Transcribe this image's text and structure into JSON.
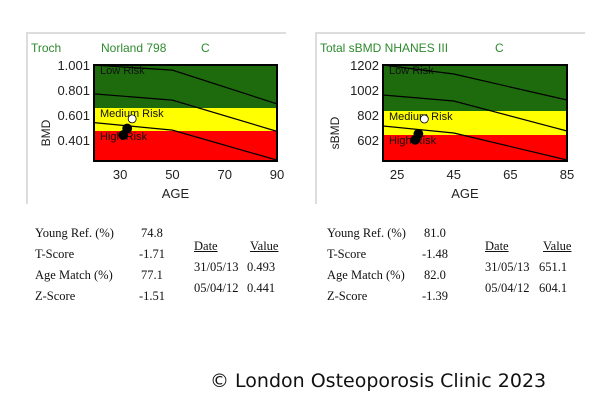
{
  "chart_data": [
    {
      "type": "line",
      "title_parts": [
        "Troch",
        "Norland 798",
        "C"
      ],
      "xlabel": "AGE",
      "ylabel": "BMD",
      "xlim": [
        20,
        90
      ],
      "ylim": [
        0.233,
        1.001
      ],
      "xticks": [
        "30",
        "50",
        "70",
        "90"
      ],
      "xtick_values": [
        30,
        50,
        70,
        90
      ],
      "yticks": [
        "1.001",
        "0.801",
        "0.601",
        "0.401"
      ],
      "ytick_values": [
        1.001,
        0.801,
        0.601,
        0.401
      ],
      "bands": [
        {
          "label": "Low Risk",
          "from": 0.657,
          "to": 1.001,
          "color": "#1e6b0e"
        },
        {
          "label": "Medium Risk",
          "from": 0.473,
          "to": 0.657,
          "color": "#ffff00"
        },
        {
          "label": "High Risk",
          "from": 0.233,
          "to": 0.473,
          "color": "#ff0000"
        }
      ],
      "curves": [
        {
          "x": [
            20,
            50,
            90
          ],
          "y": [
            1.0,
            0.96,
            0.69
          ]
        },
        {
          "x": [
            20,
            50,
            90
          ],
          "y": [
            0.77,
            0.72,
            0.47
          ]
        },
        {
          "x": [
            20,
            50,
            90
          ],
          "y": [
            0.54,
            0.48,
            0.24
          ]
        }
      ],
      "points": [
        {
          "x": 34.6,
          "y": 0.57,
          "style": "white"
        },
        {
          "x": 32.7,
          "y": 0.493,
          "style": "black"
        },
        {
          "x": 31.2,
          "y": 0.441,
          "style": "black"
        }
      ],
      "grid": false
    },
    {
      "type": "line",
      "title_parts": [
        "Total sBMD NHANES III",
        "C"
      ],
      "xlabel": "AGE",
      "ylabel": "sBMD",
      "xlim": [
        20,
        85
      ],
      "ylim": [
        434,
        1202
      ],
      "xticks": [
        "25",
        "45",
        "65",
        "85"
      ],
      "xtick_values": [
        25,
        45,
        65,
        85
      ],
      "yticks": [
        "1202",
        "1002",
        "802",
        "602"
      ],
      "ytick_values": [
        1202,
        1002,
        802,
        602
      ],
      "bands": [
        {
          "label": "Low Risk",
          "from": 834,
          "to": 1202,
          "color": "#1e6b0e"
        },
        {
          "label": "Medium Risk",
          "from": 642,
          "to": 834,
          "color": "#ffff00"
        },
        {
          "label": "High Risk",
          "from": 434,
          "to": 642,
          "color": "#ff0000"
        }
      ],
      "curves": [
        {
          "x": [
            20,
            45,
            85
          ],
          "y": [
            1202,
            1130,
            922
          ]
        },
        {
          "x": [
            20,
            45,
            85
          ],
          "y": [
            962,
            914,
            674
          ]
        },
        {
          "x": [
            20,
            45,
            85
          ],
          "y": [
            714,
            658,
            442
          ]
        }
      ],
      "points": [
        {
          "x": 34.6,
          "y": 770,
          "style": "white"
        },
        {
          "x": 32.5,
          "y": 651.1,
          "style": "black"
        },
        {
          "x": 31.4,
          "y": 604.1,
          "style": "black"
        }
      ],
      "grid": false
    }
  ],
  "title_color": "#2e8b2e",
  "stats": [
    {
      "labels": [
        "Young Ref. (%)",
        "T-Score",
        "Age Match (%)",
        "Z-Score"
      ],
      "values": [
        "74.8",
        "-1.71",
        "77.1",
        "-1.51"
      ],
      "table_headers": [
        "Date",
        "Value"
      ],
      "table_rows": [
        [
          "31/05/13",
          "0.493"
        ],
        [
          "05/04/12",
          "0.441"
        ]
      ]
    },
    {
      "labels": [
        "Young Ref. (%)",
        "T-Score",
        "Age Match (%)",
        "Z-Score"
      ],
      "values": [
        "81.0",
        "-1.48",
        "82.0",
        "-1.39"
      ],
      "table_headers": [
        "Date",
        "Value"
      ],
      "table_rows": [
        [
          "31/05/13",
          "651.1"
        ],
        [
          "05/04/12",
          "604.1"
        ]
      ]
    }
  ],
  "footer": "© London Osteoporosis Clinic 2023"
}
